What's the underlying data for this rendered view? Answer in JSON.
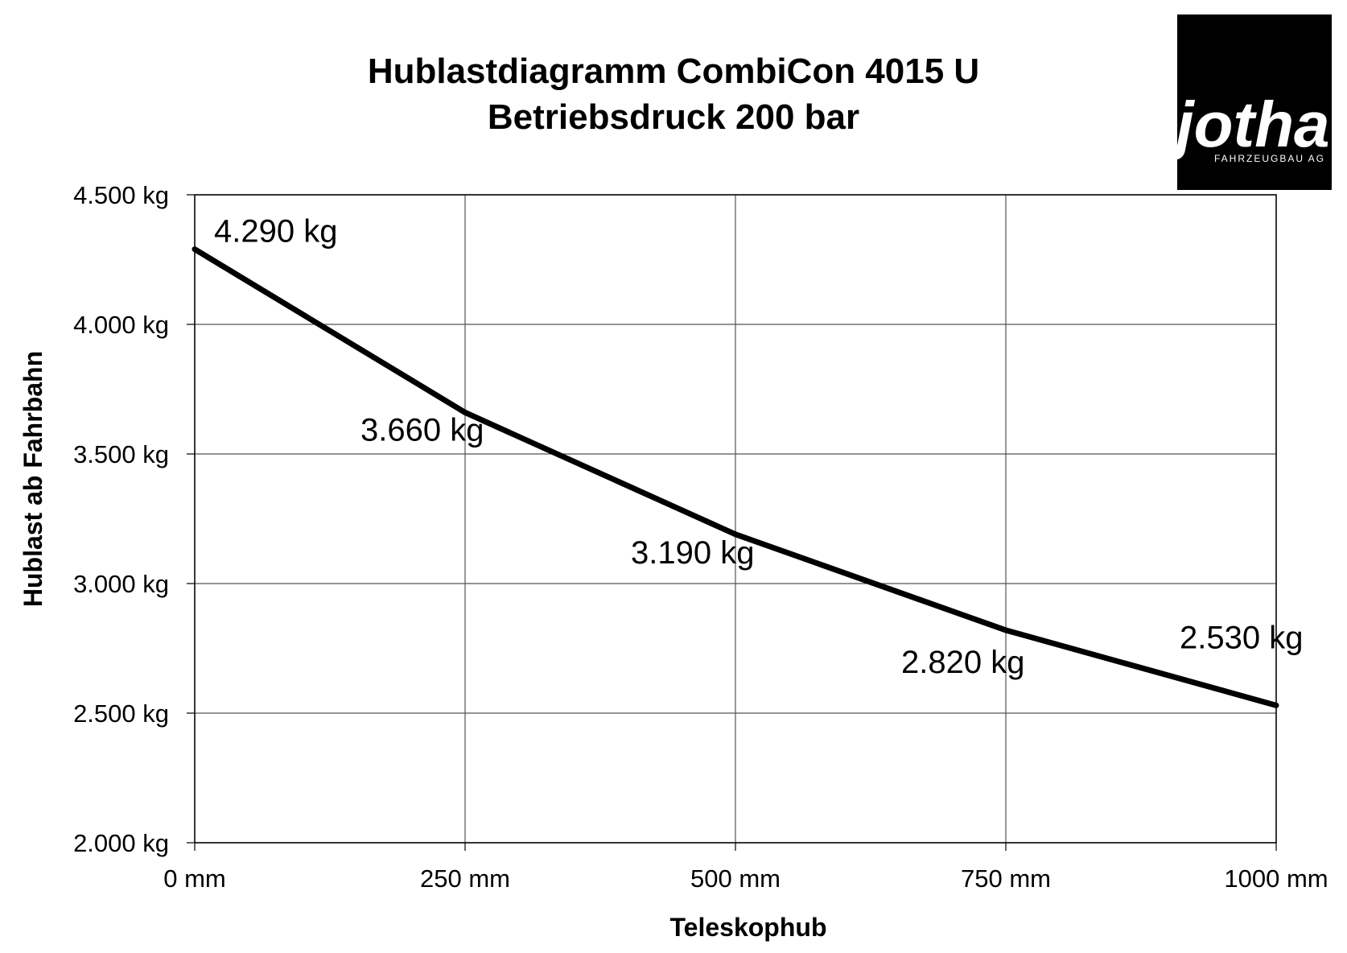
{
  "logo": {
    "name": "jotha",
    "subtitle": "FAHRZEUGBAU AG",
    "background_color": "#000000",
    "text_color": "#ffffff"
  },
  "chart_data": {
    "type": "line",
    "title": [
      "Hublastdiagramm CombiCon 4015 U",
      "Betriebsdruck 200 bar"
    ],
    "xlabel": "Teleskophub",
    "ylabel": "Hublast ab Fahrbahn",
    "x": [
      0,
      250,
      500,
      750,
      1000
    ],
    "x_unit": "mm",
    "xlim": [
      0,
      1000
    ],
    "x_ticks": [
      "0 mm",
      "250 mm",
      "500 mm",
      "750 mm",
      "1000 mm"
    ],
    "ylim": [
      2000,
      4500
    ],
    "y_unit": "kg",
    "y_ticks": [
      "2.000 kg",
      "2.500 kg",
      "3.000 kg",
      "3.500 kg",
      "4.000 kg",
      "4.500 kg"
    ],
    "series": [
      {
        "values": [
          4290,
          3660,
          3190,
          2820,
          2530
        ],
        "data_labels": [
          "4.290 kg",
          "3.660 kg",
          "3.190 kg",
          "2.820 kg",
          "2.530 kg"
        ],
        "color": "#000000"
      }
    ],
    "grid": true,
    "legend": "none"
  }
}
